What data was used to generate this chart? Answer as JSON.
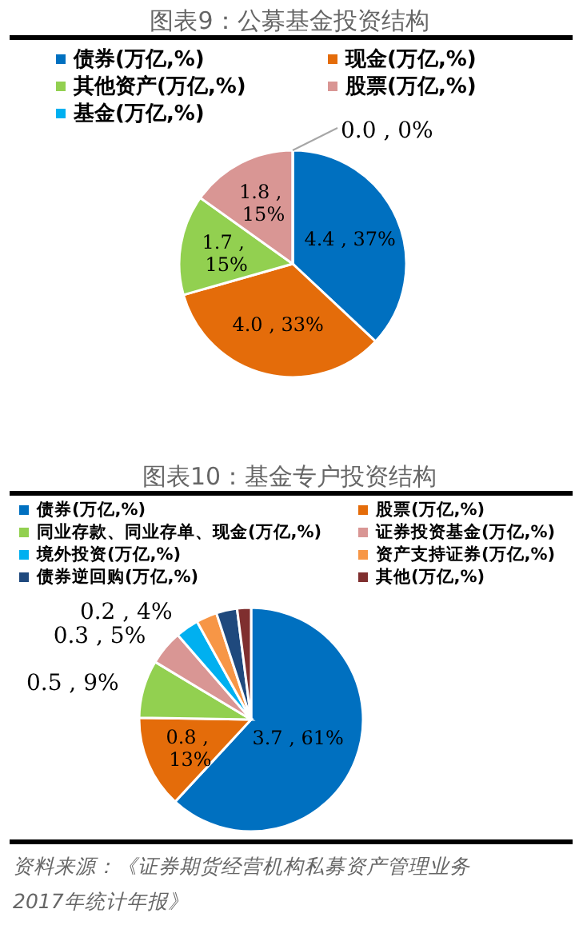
{
  "chart_data": [
    {
      "type": "pie",
      "title": "图表9：公募基金投资结构",
      "categories": [
        "债券(万亿,%)",
        "现金(万亿,%)",
        "其他资产(万亿,%)",
        "股票(万亿,%)",
        "基金(万亿,%)"
      ],
      "values": [
        4.4,
        4.0,
        1.7,
        1.8,
        0.0
      ],
      "colors": [
        "#0070c0",
        "#e46c0a",
        "#92d050",
        "#d99694",
        "#00b0f0"
      ],
      "value_labels": [
        "4.4 , 37%",
        "4.0 , 33%",
        "1.7 , 15%",
        "1.8 , 15%",
        "0.0 , 0%"
      ],
      "legend": "top"
    },
    {
      "type": "pie",
      "title": "图表10：基金专户投资结构",
      "categories": [
        "债券(万亿,%)",
        "股票(万亿,%)",
        "同业存款、同业存单、现金(万亿,%)",
        "证券投资基金(万亿,%)",
        "境外投资(万亿,%)",
        "资产支持证券(万亿,%)",
        "债券逆回购(万亿,%)",
        "其他(万亿,%)"
      ],
      "values": [
        3.7,
        0.8,
        0.5,
        0.3,
        0.2,
        0.18,
        0.18,
        0.12
      ],
      "colors": [
        "#0070c0",
        "#e46c0a",
        "#92d050",
        "#d99694",
        "#00b0f0",
        "#f79646",
        "#1f497d",
        "#7f2f2f"
      ],
      "value_labels": [
        "3.7 , 61%",
        "0.8 , 13%",
        "0.5 , 9%",
        "0.3 , 5%",
        "0.2 , 4%",
        null,
        null,
        null
      ],
      "legend": "top",
      "annotations": [
        "资料来源：《证券期货经营机构私募资产管理业务2017年统计年报》"
      ]
    }
  ]
}
